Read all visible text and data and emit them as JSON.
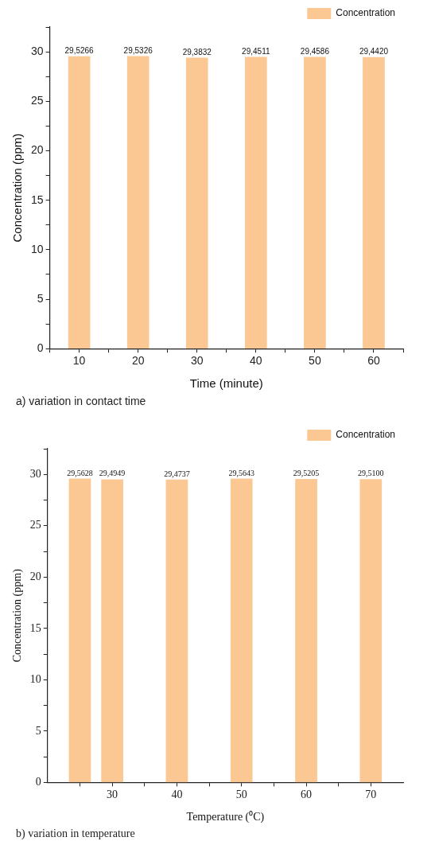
{
  "chart_data": [
    {
      "type": "bar",
      "xlabel": "Time (minute)",
      "ylabel": "Concentration (ppm)",
      "x": [
        10,
        20,
        30,
        40,
        50,
        60
      ],
      "series": [
        {
          "name": "Concentration",
          "color": "#fbc793",
          "values": [
            29.5266,
            29.5326,
            29.3832,
            29.4511,
            29.4586,
            29.442
          ],
          "value_labels": [
            "29,5266",
            "29,5326",
            "29,3832",
            "29,4511",
            "29,4586",
            "29,4420"
          ]
        }
      ],
      "xlim": [
        5,
        65
      ],
      "xticks": [
        {
          "value": 5,
          "label": null
        },
        10,
        {
          "value": 15,
          "label": null
        },
        20,
        {
          "value": 25,
          "label": null
        },
        30,
        {
          "value": 35,
          "label": null
        },
        40,
        {
          "value": 45,
          "label": null
        },
        50,
        {
          "value": 55,
          "label": null
        },
        60,
        {
          "value": 65,
          "label": null
        }
      ],
      "ylim": [
        0,
        32.5
      ],
      "yticks": [
        0,
        {
          "value": 2.5,
          "label": null
        },
        5,
        {
          "value": 7.5,
          "label": null
        },
        10,
        {
          "value": 12.5,
          "label": null
        },
        15,
        {
          "value": 17.5,
          "label": null
        },
        20,
        {
          "value": 22.5,
          "label": null
        },
        25,
        {
          "value": 27.5,
          "label": null
        },
        30,
        {
          "value": 32.5,
          "label": null
        }
      ],
      "grid": false,
      "legend": "top right",
      "annotations": [
        "a) variation in contact time"
      ]
    },
    {
      "type": "bar",
      "xlabel": "Temperature (⁰C)",
      "ylabel": "Concentration (ppm)",
      "x": [
        25,
        30,
        40,
        50,
        60,
        70
      ],
      "series": [
        {
          "name": "Concentration",
          "color": "#fbc793",
          "values": [
            29.5628,
            29.4949,
            29.4737,
            29.5643,
            29.5205,
            29.51
          ],
          "value_labels": [
            "29,5628",
            "29,4949",
            "29,4737",
            "29,5643",
            "29,5205",
            "29,5100"
          ]
        }
      ],
      "xlim": [
        20,
        75
      ],
      "xticks": [
        {
          "value": 25,
          "label": null
        },
        30,
        {
          "value": 35,
          "label": null
        },
        40,
        {
          "value": 45,
          "label": null
        },
        50,
        {
          "value": 55,
          "label": null
        },
        60,
        {
          "value": 65,
          "label": null
        },
        70
      ],
      "ylim": [
        0,
        32.5
      ],
      "yticks": [
        0,
        {
          "value": 2.5,
          "label": null
        },
        5,
        {
          "value": 7.5,
          "label": null
        },
        10,
        {
          "value": 12.5,
          "label": null
        },
        15,
        {
          "value": 17.5,
          "label": null
        },
        20,
        {
          "value": 22.5,
          "label": null
        },
        25,
        {
          "value": 27.5,
          "label": null
        },
        30,
        {
          "value": 32.5,
          "label": null
        }
      ],
      "grid": false,
      "legend": "top right",
      "annotations": [
        "b) variation in temperature"
      ]
    }
  ]
}
